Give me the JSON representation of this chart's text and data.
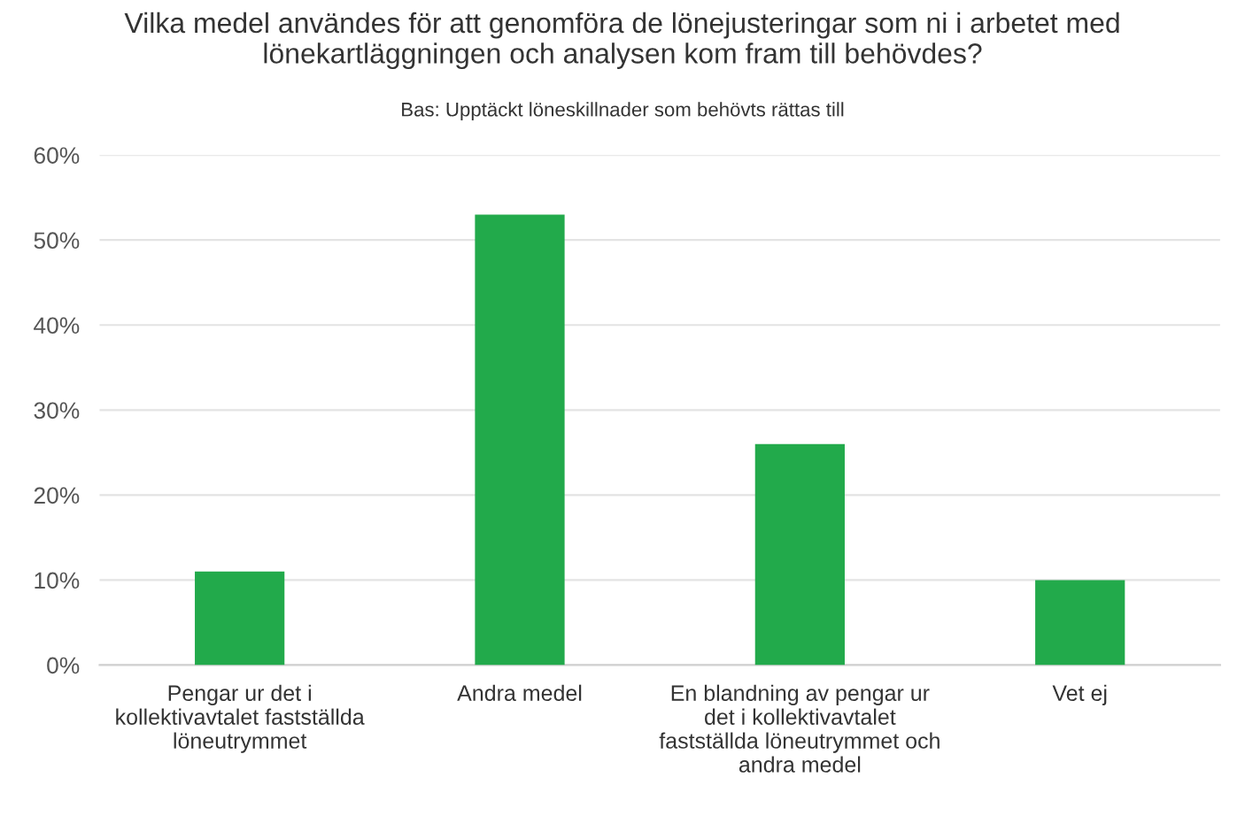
{
  "chart_data": {
    "type": "bar",
    "title": "Vilka medel användes för att genomföra de lönejusteringar som ni i arbetet med\nlönekartläggningen och analysen kom fram till behövdes?",
    "subtitle": "Bas: Upptäckt löneskillnader som behövts rättas till",
    "categories": [
      "Pengar ur det i\nkollektivavtalet fastställda\nlöneutrymmet",
      "Andra medel",
      "En blandning av pengar ur\ndet i kollektivavtalet\nfastställda löneutrymmet och\nandra medel",
      "Vet ej"
    ],
    "values": [
      11,
      53,
      26,
      10
    ],
    "color": "#22aa4b",
    "ylim": [
      0,
      60
    ],
    "yticks": [
      {
        "value": 0,
        "label": "0%"
      },
      {
        "value": 10,
        "label": "10%"
      },
      {
        "value": 20,
        "label": "20%"
      },
      {
        "value": 30,
        "label": "30%"
      },
      {
        "value": 40,
        "label": "40%"
      },
      {
        "value": 50,
        "label": "50%"
      },
      {
        "value": 60,
        "label": "60%"
      }
    ],
    "grid": "y"
  }
}
